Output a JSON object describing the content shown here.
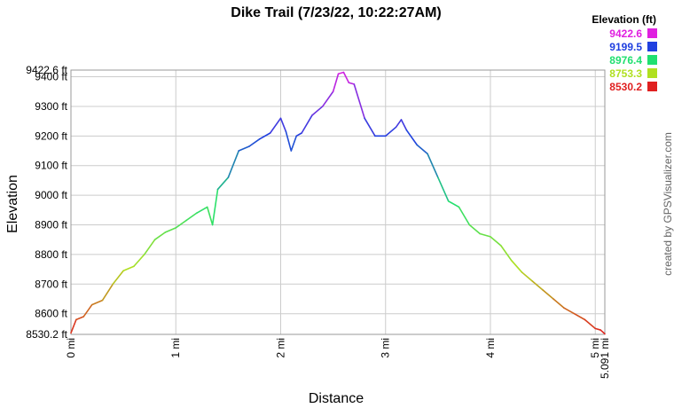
{
  "chart_data": {
    "type": "line",
    "title": "Dike Trail (7/23/22, 10:22:27AM)",
    "xlabel": "Distance",
    "ylabel": "Elevation",
    "credit": "created by GPSVisualizer.com",
    "xlim": [
      0,
      5.091
    ],
    "ylim": [
      8530.2,
      9422.6
    ],
    "grid": true,
    "x_ticks": [
      {
        "value": 0,
        "label": "0 mi"
      },
      {
        "value": 1,
        "label": "1 mi"
      },
      {
        "value": 2,
        "label": "2 mi"
      },
      {
        "value": 3,
        "label": "3 mi"
      },
      {
        "value": 4,
        "label": "4 mi"
      },
      {
        "value": 5,
        "label": "5 mi"
      },
      {
        "value": 5.091,
        "label": "5.091 mi"
      }
    ],
    "y_ticks": [
      {
        "value": 8530.2,
        "label": "8530.2 ft"
      },
      {
        "value": 8600,
        "label": "8600 ft"
      },
      {
        "value": 8700,
        "label": "8700 ft"
      },
      {
        "value": 8800,
        "label": "8800 ft"
      },
      {
        "value": 8900,
        "label": "8900 ft"
      },
      {
        "value": 9000,
        "label": "9000 ft"
      },
      {
        "value": 9100,
        "label": "9100 ft"
      },
      {
        "value": 9200,
        "label": "9200 ft"
      },
      {
        "value": 9300,
        "label": "9300 ft"
      },
      {
        "value": 9400,
        "label": "9400 ft"
      },
      {
        "value": 9422.6,
        "label": "9422.6 ft"
      }
    ],
    "legend": {
      "title": "Elevation (ft)",
      "position": "top-right",
      "entries": [
        {
          "label": "9422.6",
          "color": "#e020e0"
        },
        {
          "label": "9199.5",
          "color": "#2040e0"
        },
        {
          "label": "8976.4",
          "color": "#20e070"
        },
        {
          "label": "8753.3",
          "color": "#b0e020"
        },
        {
          "label": "8530.2",
          "color": "#e02020"
        }
      ]
    },
    "series": [
      {
        "color_scale": "elevation",
        "x": [
          0,
          0.05,
          0.12,
          0.2,
          0.3,
          0.4,
          0.5,
          0.6,
          0.7,
          0.8,
          0.9,
          1.0,
          1.1,
          1.2,
          1.3,
          1.35,
          1.4,
          1.5,
          1.6,
          1.7,
          1.8,
          1.9,
          2.0,
          2.05,
          2.1,
          2.15,
          2.2,
          2.3,
          2.4,
          2.5,
          2.55,
          2.6,
          2.65,
          2.7,
          2.8,
          2.9,
          3.0,
          3.1,
          3.15,
          3.2,
          3.3,
          3.4,
          3.5,
          3.6,
          3.7,
          3.8,
          3.9,
          4.0,
          4.1,
          4.2,
          4.3,
          4.4,
          4.5,
          4.6,
          4.7,
          4.8,
          4.9,
          5.0,
          5.05,
          5.091
        ],
        "y": [
          8535,
          8580,
          8590,
          8630,
          8645,
          8700,
          8745,
          8760,
          8800,
          8850,
          8875,
          8890,
          8915,
          8940,
          8960,
          8900,
          9020,
          9060,
          9150,
          9165,
          9190,
          9210,
          9260,
          9215,
          9150,
          9200,
          9210,
          9270,
          9300,
          9350,
          9410,
          9415,
          9380,
          9375,
          9260,
          9200,
          9200,
          9230,
          9255,
          9220,
          9170,
          9140,
          9060,
          8980,
          8960,
          8900,
          8870,
          8860,
          8830,
          8780,
          8740,
          8710,
          8680,
          8650,
          8620,
          8600,
          8580,
          8550,
          8545,
          8532
        ]
      }
    ]
  }
}
